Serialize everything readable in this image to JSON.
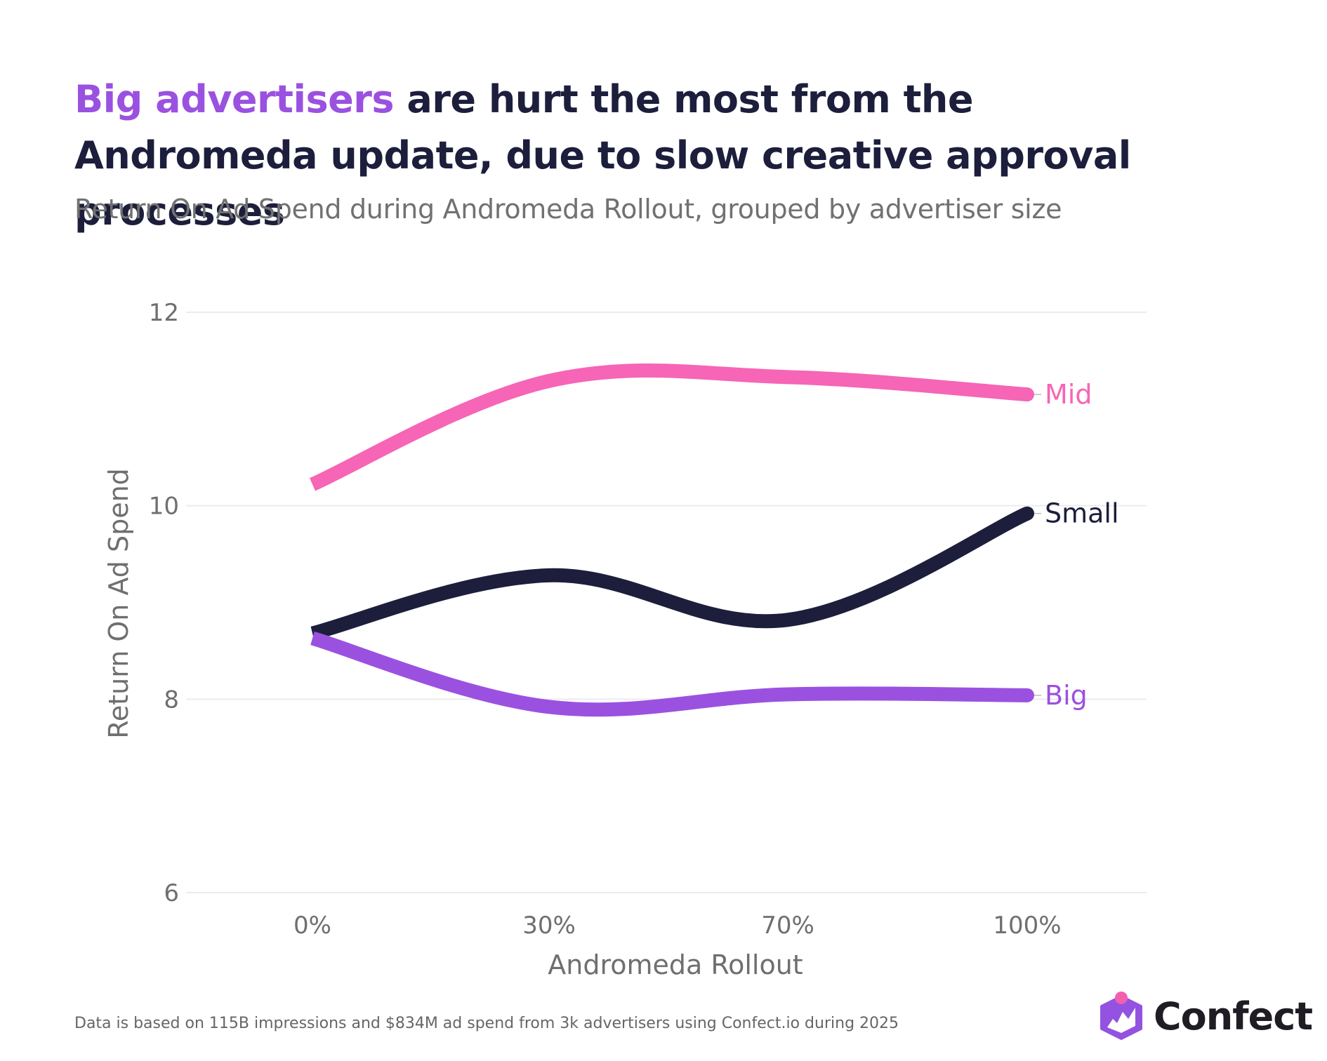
{
  "header": {
    "title_accent": "Big advertisers",
    "title_rest": " are hurt the most from the Andromeda update, due to slow creative approval processes",
    "subtitle": "Return On Ad Spend during Andromeda Rollout, grouped by advertiser size"
  },
  "footer": {
    "note": "Data is based on 115B impressions and $834M ad spend from 3k advertisers using Confect.io during 2025"
  },
  "logo": {
    "name": "Confect",
    "icon": "confect-logo-icon"
  },
  "colors": {
    "accent": "#9b51e0",
    "title": "#1c1e3c",
    "mid": "#f665b6",
    "small": "#1c1e3c",
    "big": "#9b51e0",
    "grid": "#ececec",
    "logo_purple": "#9452e0",
    "logo_pink": "#f25eb0"
  },
  "chart_data": {
    "type": "line",
    "title": "Big advertisers are hurt the most from the Andromeda update, due to slow creative approval processes",
    "subtitle": "Return On Ad Spend during Andromeda Rollout, grouped by advertiser size",
    "xlabel": "Andromeda Rollout",
    "ylabel": "Return On Ad Spend",
    "categories": [
      "0%",
      "30%",
      "70%",
      "100%"
    ],
    "x": [
      0,
      30,
      70,
      100
    ],
    "ylim": [
      6,
      12
    ],
    "yticks": [
      6,
      8,
      10,
      12
    ],
    "grid": true,
    "legend": "inline-end-labels",
    "series": [
      {
        "name": "Mid",
        "values": [
          10.22,
          11.29,
          11.33,
          11.15
        ],
        "color": "#f665b6"
      },
      {
        "name": "Small",
        "values": [
          8.68,
          9.28,
          8.82,
          9.92
        ],
        "color": "#1c1e3c"
      },
      {
        "name": "Big",
        "values": [
          8.63,
          7.92,
          8.05,
          8.04
        ],
        "color": "#9b51e0"
      }
    ]
  }
}
